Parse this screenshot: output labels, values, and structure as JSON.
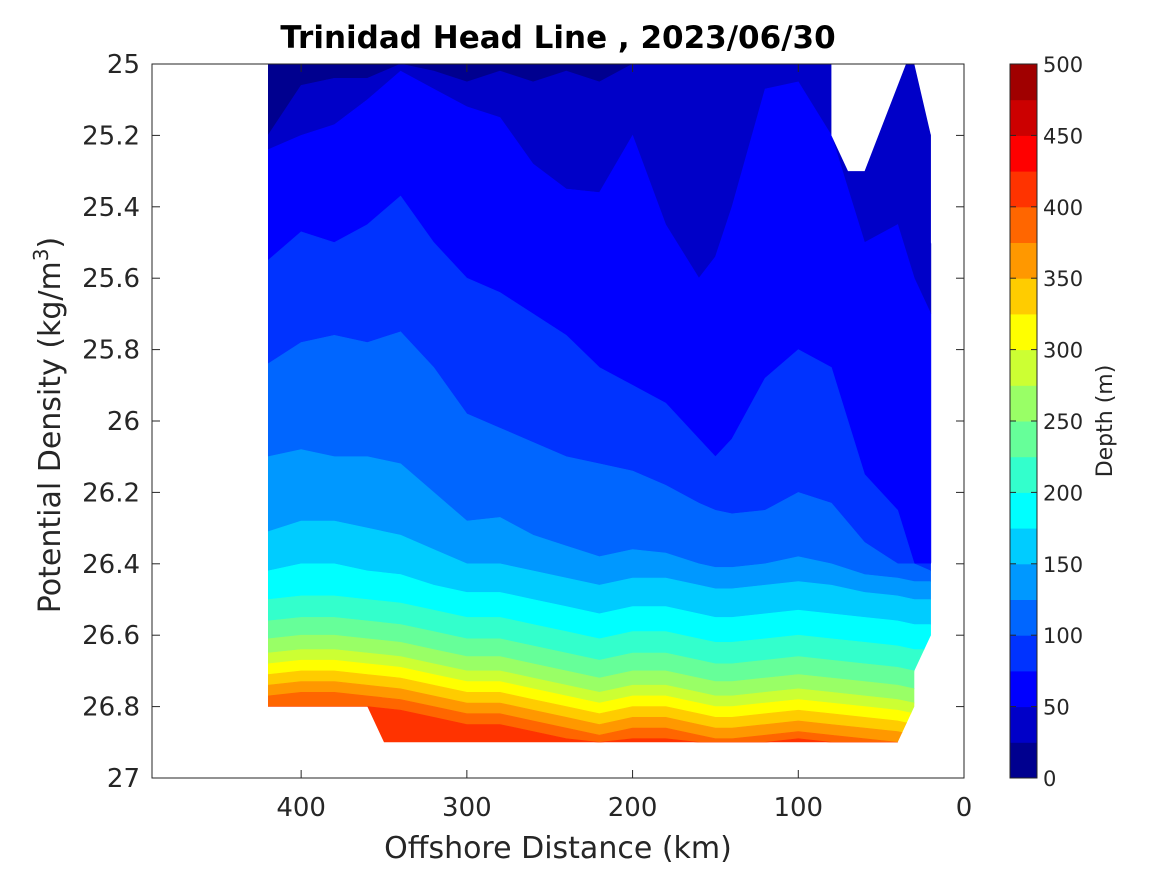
{
  "chart_data": {
    "type": "filled-contour",
    "title": "Trinidad Head Line , 2023/06/30",
    "xlabel": "Offshore Distance (km)",
    "ylabel_main": "Potential Density (kg/m",
    "ylabel_sup": "3",
    "ylabel_close": ")",
    "x_reversed": true,
    "y_reversed": true,
    "xlim": [
      490,
      0
    ],
    "ylim": [
      25,
      27
    ],
    "xticks": [
      400,
      300,
      200,
      100,
      0
    ],
    "xtick_labels": [
      "400",
      "300",
      "200",
      "100",
      "0"
    ],
    "yticks": [
      25,
      25.2,
      25.4,
      25.6,
      25.8,
      26,
      26.2,
      26.4,
      26.6,
      26.8,
      27
    ],
    "ytick_labels": [
      "25",
      "25.2",
      "25.4",
      "25.6",
      "25.8",
      "26",
      "26.2",
      "26.4",
      "26.6",
      "26.8",
      "27"
    ],
    "colorbar": {
      "label": "Depth (m)",
      "range": [
        0,
        500
      ],
      "ticks": [
        0,
        50,
        100,
        150,
        200,
        250,
        300,
        350,
        400,
        450,
        500
      ],
      "tick_labels": [
        "0",
        "50",
        "100",
        "150",
        "200",
        "250",
        "300",
        "350",
        "400",
        "450",
        "500"
      ],
      "levels": [
        0,
        25,
        50,
        75,
        100,
        125,
        150,
        175,
        200,
        225,
        250,
        275,
        300,
        325,
        350,
        375,
        400,
        425,
        450,
        475,
        500
      ],
      "colormap": "jet",
      "colors": [
        "#00008f",
        "#0000c8",
        "#0000ff",
        "#0033ff",
        "#0066ff",
        "#0098ff",
        "#00ccff",
        "#00ffff",
        "#33ffcc",
        "#66ff99",
        "#99ff66",
        "#ccff33",
        "#ffff00",
        "#ffcc00",
        "#ff9800",
        "#ff6600",
        "#ff3300",
        "#ff0000",
        "#cc0000",
        "#a00000"
      ]
    },
    "grid": false,
    "station_distances_km": [
      420,
      400,
      380,
      360,
      340,
      320,
      300,
      280,
      260,
      240,
      220,
      200,
      180,
      160,
      150,
      140,
      120,
      100,
      80,
      60,
      40,
      30,
      20
    ],
    "isodepth_contours": [
      {
        "depth": 25,
        "density": [
          25.2,
          25.06,
          25.04,
          25.04,
          25.0,
          25.02,
          25.05,
          25.02,
          25.05,
          25.02,
          25.05,
          25.0,
          25.0,
          25.0,
          25.0,
          25.0,
          25.0,
          25.0,
          25.0,
          25.3,
          25.0,
          25.0,
          25.0
        ]
      },
      {
        "depth": 50,
        "density": [
          25.24,
          25.2,
          25.17,
          25.1,
          25.02,
          25.07,
          25.12,
          25.15,
          25.28,
          25.35,
          25.36,
          25.2,
          25.45,
          25.6,
          25.54,
          25.4,
          25.07,
          25.05,
          25.2,
          25.5,
          25.45,
          25.6,
          25.7
        ]
      },
      {
        "depth": 75,
        "density": [
          25.55,
          25.47,
          25.5,
          25.45,
          25.37,
          25.5,
          25.6,
          25.64,
          25.7,
          25.76,
          25.85,
          25.9,
          25.95,
          26.05,
          26.1,
          26.05,
          25.88,
          25.8,
          25.85,
          26.15,
          26.25,
          26.4,
          26.4
        ]
      },
      {
        "depth": 100,
        "density": [
          25.84,
          25.78,
          25.76,
          25.78,
          25.75,
          25.85,
          25.98,
          26.02,
          26.06,
          26.1,
          26.12,
          26.14,
          26.18,
          26.23,
          26.25,
          26.26,
          26.25,
          26.2,
          26.23,
          26.34,
          26.4,
          26.4,
          26.42
        ]
      },
      {
        "depth": 125,
        "density": [
          26.1,
          26.08,
          26.1,
          26.1,
          26.12,
          26.2,
          26.28,
          26.27,
          26.32,
          26.35,
          26.38,
          26.36,
          26.37,
          26.4,
          26.41,
          26.41,
          26.4,
          26.38,
          26.4,
          26.43,
          26.44,
          26.45,
          26.45
        ]
      },
      {
        "depth": 150,
        "density": [
          26.31,
          26.28,
          26.28,
          26.3,
          26.32,
          26.36,
          26.4,
          26.4,
          26.42,
          26.44,
          26.46,
          26.44,
          26.44,
          26.46,
          26.47,
          26.47,
          26.46,
          26.45,
          26.46,
          26.48,
          26.49,
          26.5,
          26.5
        ]
      },
      {
        "depth": 175,
        "density": [
          26.42,
          26.4,
          26.4,
          26.42,
          26.43,
          26.46,
          26.48,
          26.48,
          26.5,
          26.52,
          26.54,
          26.52,
          26.52,
          26.54,
          26.55,
          26.55,
          26.54,
          26.53,
          26.54,
          26.55,
          26.56,
          26.57,
          26.57
        ]
      },
      {
        "depth": 200,
        "density": [
          26.5,
          26.49,
          26.49,
          26.5,
          26.51,
          26.53,
          26.55,
          26.55,
          26.57,
          26.59,
          26.61,
          26.59,
          26.59,
          26.61,
          26.62,
          26.62,
          26.61,
          26.6,
          26.61,
          26.62,
          26.63,
          26.64,
          26.64
        ]
      },
      {
        "depth": 225,
        "density": [
          26.56,
          26.55,
          26.55,
          26.56,
          26.57,
          26.59,
          26.61,
          26.61,
          26.63,
          26.65,
          26.67,
          26.65,
          26.65,
          26.67,
          26.68,
          26.68,
          26.67,
          26.66,
          26.67,
          26.68,
          26.69,
          26.7,
          26.7
        ]
      },
      {
        "depth": 250,
        "density": [
          26.61,
          26.6,
          26.6,
          26.61,
          26.62,
          26.64,
          26.66,
          26.66,
          26.68,
          26.7,
          26.72,
          26.7,
          26.7,
          26.72,
          26.73,
          26.73,
          26.72,
          26.71,
          26.72,
          26.73,
          26.74,
          26.75,
          26.75
        ]
      },
      {
        "depth": 275,
        "density": [
          26.65,
          26.64,
          26.64,
          26.65,
          26.66,
          26.68,
          26.7,
          26.7,
          26.72,
          26.74,
          26.76,
          26.74,
          26.74,
          26.76,
          26.77,
          26.77,
          26.76,
          26.75,
          26.76,
          26.77,
          26.78,
          26.79,
          26.79
        ]
      },
      {
        "depth": 300,
        "density": [
          26.68,
          26.67,
          26.67,
          26.68,
          26.69,
          26.71,
          26.73,
          26.73,
          26.75,
          26.77,
          26.79,
          26.77,
          26.77,
          26.79,
          26.8,
          26.8,
          26.79,
          26.78,
          26.79,
          26.8,
          26.81,
          26.82,
          26.82
        ]
      },
      {
        "depth": 325,
        "density": [
          26.71,
          26.7,
          26.7,
          26.71,
          26.72,
          26.74,
          26.76,
          26.76,
          26.78,
          26.8,
          26.82,
          26.8,
          26.8,
          26.82,
          26.83,
          26.83,
          26.82,
          26.81,
          26.82,
          26.83,
          26.84,
          26.85,
          26.85
        ]
      },
      {
        "depth": 350,
        "density": [
          26.74,
          26.73,
          26.73,
          26.74,
          26.75,
          26.77,
          26.79,
          26.79,
          26.81,
          26.83,
          26.85,
          26.83,
          26.83,
          26.85,
          26.86,
          26.86,
          26.85,
          26.84,
          26.85,
          26.86,
          26.87,
          26.88,
          26.88
        ]
      },
      {
        "depth": 375,
        "density": [
          26.77,
          26.76,
          26.76,
          26.77,
          26.78,
          26.8,
          26.82,
          26.82,
          26.84,
          26.86,
          26.88,
          26.86,
          26.86,
          26.88,
          26.89,
          26.89,
          26.88,
          26.87,
          26.88,
          26.89,
          26.9,
          26.9,
          26.9
        ]
      },
      {
        "depth": 400,
        "density": [
          26.8,
          26.8,
          26.8,
          26.8,
          26.81,
          26.83,
          26.85,
          26.85,
          26.87,
          26.89,
          26.9,
          26.89,
          26.89,
          26.9,
          26.9,
          26.9,
          26.9,
          26.89,
          26.9,
          26.9,
          26.9,
          26.9,
          26.9
        ]
      }
    ]
  }
}
